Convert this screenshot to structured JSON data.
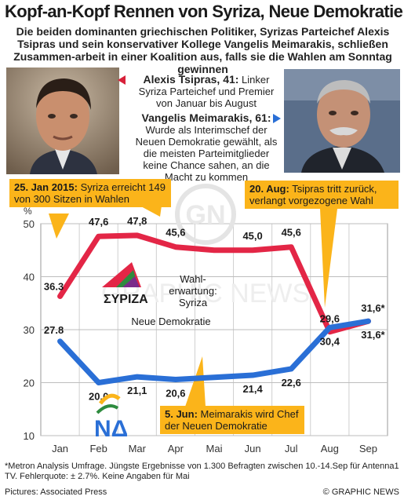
{
  "title": "Kopf-an-Kopf Rennen von Syriza, Neue Demokratie",
  "subtitle": "Die beiden dominanten griechischen Politiker, Syrizas Parteichef Alexis Tsipras und sein konservativer Kollege Vangelis Meimarakis, schließen Zusammen-arbeit in einer Koalition aus, falls sie die Wahlen am Sonntag gewinnen",
  "bios": {
    "tsipras": {
      "name": "Alexis Tsipras, 41:",
      "text": " Linker Syriza Parteichef und Premier von Januar bis August"
    },
    "meimarakis": {
      "name": "Vangelis Meimarakis, 61:",
      "text": " Wurde als Interimschef der Neuen Demokratie gewählt, als die meisten Parteimitglieder keine Chance sahen, an die Macht zu kommen"
    }
  },
  "callouts": {
    "jan": {
      "bold": "25. Jan 2015:",
      "text": " Syriza erreicht 149 von 300 Sitzen in Wahlen"
    },
    "aug": {
      "bold": "20. Aug:",
      "text": " Tsipras tritt zurück, verlangt vorgezogene Wahl"
    },
    "jun": {
      "bold": "5. Jun:",
      "text": " Meimarakis wird Chef der Neuen Demokratie"
    }
  },
  "annotations": {
    "expectation": [
      "Wahl-",
      "erwartung:",
      "Syriza"
    ],
    "nd_label": "Neue Demokratie",
    "syriza_logo": "ΣΥΡΙΖΑ",
    "nd_logo": "ΝΔ",
    "watermark_gn": "GN",
    "watermark_text": "GRAPHIC NEWS"
  },
  "chart_data": {
    "type": "line",
    "categories": [
      "Jan",
      "Feb",
      "Mar",
      "Apr",
      "Mai",
      "Jun",
      "Jul",
      "Aug",
      "Sep"
    ],
    "ylabel": "%",
    "ylim": [
      10,
      50
    ],
    "yticks": [
      10,
      20,
      30,
      40,
      50
    ],
    "grid": true,
    "series": [
      {
        "name": "Syriza",
        "color": "#e32646",
        "values": [
          36.3,
          47.6,
          47.8,
          45.6,
          45.0,
          45.0,
          45.6,
          29.6,
          31.6
        ],
        "labels": [
          "36.3",
          "47,6",
          "47,8",
          "45,6",
          "",
          "45,0",
          "45,6",
          "29,6",
          "31,6*"
        ]
      },
      {
        "name": "Neue Demokratie",
        "color": "#2a6fd6",
        "values": [
          27.8,
          20.0,
          21.1,
          20.6,
          21.0,
          21.4,
          22.6,
          30.4,
          31.6
        ],
        "labels": [
          "27.8",
          "20,0",
          "21,1",
          "20,6",
          "",
          "21,4",
          "22,6",
          "30,4",
          "31,6*"
        ]
      }
    ]
  },
  "footnote": "*Metron Analysis Umfrage. Jüngste Ergebnisse von 1.300 Befragten zwischen 10.-14.Sep für Antenna1 TV. Fehlerquote: ± 2.7%. Keine Angaben für Mai",
  "credit_left": "Pictures: Associated Press",
  "credit_right": "© GRAPHIC NEWS",
  "colors": {
    "accent": "#fbb41a",
    "syriza": "#e32646",
    "nd": "#2a6fd6",
    "plot_bg": "#ffffff"
  }
}
